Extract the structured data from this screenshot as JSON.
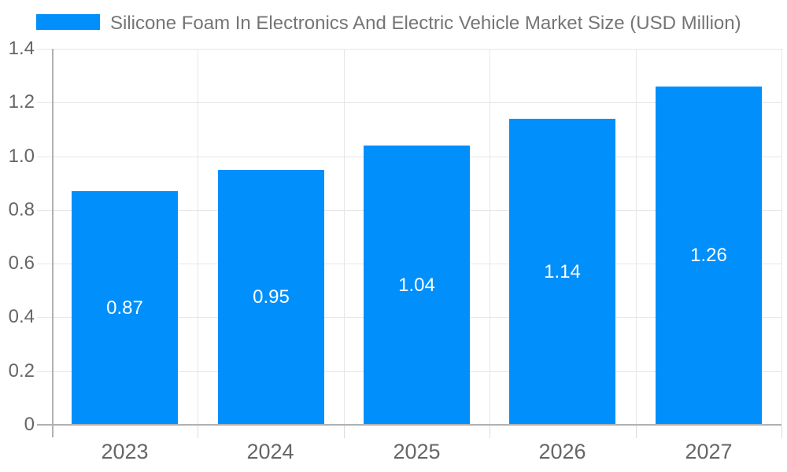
{
  "chart_data": {
    "type": "bar",
    "title": "Silicone Foam In Electronics And Electric Vehicle Market Size (USD Million)",
    "categories": [
      "2023",
      "2024",
      "2025",
      "2026",
      "2027"
    ],
    "values": [
      0.87,
      0.95,
      1.04,
      1.14,
      1.26
    ],
    "value_labels": [
      "0.87",
      "0.95",
      "1.04",
      "1.14",
      "1.26"
    ],
    "xlabel": "",
    "ylabel": "",
    "ylim": [
      0,
      1.4
    ],
    "yticks": [
      0,
      0.2,
      0.4,
      0.6,
      0.8,
      1.0,
      1.2,
      1.4
    ],
    "ytick_labels": [
      "0",
      "0.2",
      "0.4",
      "0.6",
      "0.8",
      "1.0",
      "1.2",
      "1.4"
    ],
    "grid": true,
    "legend_position": "top",
    "colors": {
      "bar": "#008FFB",
      "grid": "#e7e7e7",
      "axis_line": "#b1b1b1",
      "tick": "#dcdcdc",
      "title_text": "#757575",
      "axis_text": "#666666",
      "data_label_text": "#ffffff",
      "background": "#ffffff"
    }
  }
}
